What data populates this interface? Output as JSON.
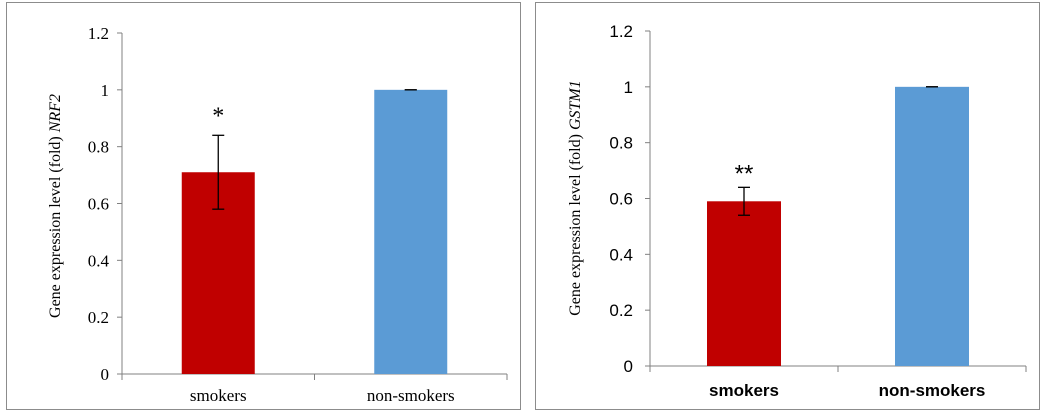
{
  "chart_data": [
    {
      "type": "bar",
      "categories": [
        "smokers",
        "non-smokers"
      ],
      "values": [
        0.71,
        1.0
      ],
      "errors": [
        0.13,
        0.0
      ],
      "bar_colors": [
        "#c00000",
        "#5b9bd5"
      ],
      "significance": [
        "*",
        ""
      ],
      "ylabel": "Gene expression level (fold)",
      "ylabel_gene": "NRF2",
      "ylim": [
        0,
        1.2
      ],
      "yticks": [
        "0",
        "0.2",
        "0.4",
        "0.6",
        "0.8",
        "1",
        "1.2"
      ],
      "grid": false
    },
    {
      "type": "bar",
      "categories": [
        "smokers",
        "non-smokers"
      ],
      "values": [
        0.59,
        1.0
      ],
      "errors": [
        0.05,
        0.0
      ],
      "bar_colors": [
        "#c00000",
        "#5b9bd5"
      ],
      "significance": [
        "**",
        ""
      ],
      "ylabel": "Gene expression level (fold)",
      "ylabel_gene": "GSTM1",
      "ylim": [
        0,
        1.2
      ],
      "yticks": [
        "0",
        "0.2",
        "0.4",
        "0.6",
        "0.8",
        "1",
        "1.2"
      ],
      "grid": false
    }
  ]
}
